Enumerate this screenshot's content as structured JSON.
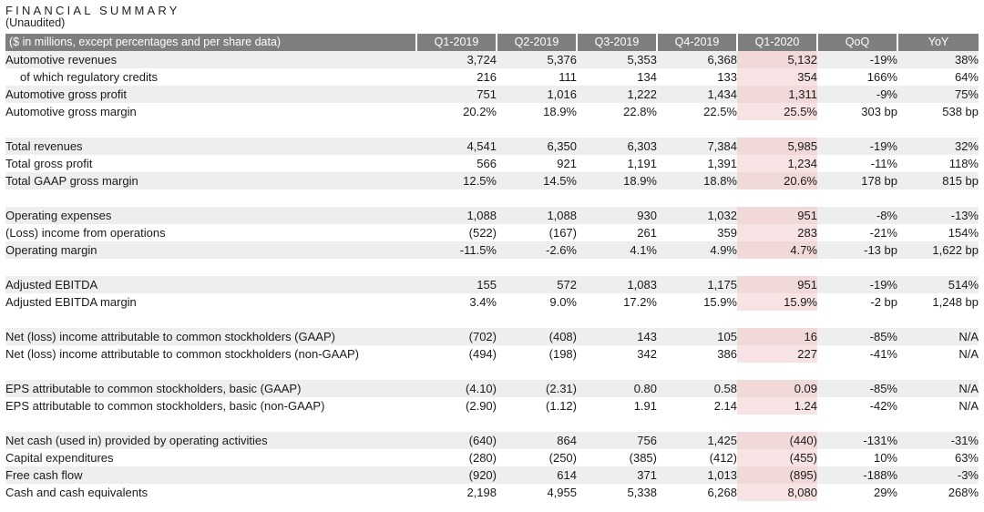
{
  "header": {
    "title": "FINANCIAL SUMMARY",
    "subtitle": "(Unaudited)"
  },
  "table": {
    "label_header": "($ in millions, except percentages and per share data)",
    "columns": [
      "Q1-2019",
      "Q2-2019",
      "Q3-2019",
      "Q4-2019",
      "Q1-2020",
      "QoQ",
      "YoY"
    ],
    "highlight_column": "Q1-2020",
    "highlight_color": "#f1d9d9",
    "header_color": "#7f7f7f",
    "rows": [
      {
        "label": "Automotive revenues",
        "values": [
          "3,724",
          "5,376",
          "5,353",
          "6,368",
          "5,132",
          "-19%",
          "38%"
        ]
      },
      {
        "label": "of which regulatory credits",
        "indent": true,
        "values": [
          "216",
          "111",
          "134",
          "133",
          "354",
          "166%",
          "64%"
        ]
      },
      {
        "label": "Automotive gross profit",
        "values": [
          "751",
          "1,016",
          "1,222",
          "1,434",
          "1,311",
          "-9%",
          "75%"
        ]
      },
      {
        "label": "Automotive gross margin",
        "values": [
          "20.2%",
          "18.9%",
          "22.8%",
          "22.5%",
          "25.5%",
          "303 bp",
          "538 bp"
        ]
      },
      {
        "spacer": true
      },
      {
        "label": "Total revenues",
        "values": [
          "4,541",
          "6,350",
          "6,303",
          "7,384",
          "5,985",
          "-19%",
          "32%"
        ]
      },
      {
        "label": "Total gross profit",
        "values": [
          "566",
          "921",
          "1,191",
          "1,391",
          "1,234",
          "-11%",
          "118%"
        ]
      },
      {
        "label": "Total GAAP gross margin",
        "values": [
          "12.5%",
          "14.5%",
          "18.9%",
          "18.8%",
          "20.6%",
          "178 bp",
          "815 bp"
        ]
      },
      {
        "spacer": true
      },
      {
        "label": "Operating expenses",
        "values": [
          "1,088",
          "1,088",
          "930",
          "1,032",
          "951",
          "-8%",
          "-13%"
        ]
      },
      {
        "label": "(Loss) income from operations",
        "values": [
          "(522)",
          "(167)",
          "261",
          "359",
          "283",
          "-21%",
          "154%"
        ]
      },
      {
        "label": "Operating margin",
        "values": [
          "-11.5%",
          "-2.6%",
          "4.1%",
          "4.9%",
          "4.7%",
          "-13 bp",
          "1,622 bp"
        ]
      },
      {
        "spacer": true
      },
      {
        "label": "Adjusted EBITDA",
        "values": [
          "155",
          "572",
          "1,083",
          "1,175",
          "951",
          "-19%",
          "514%"
        ]
      },
      {
        "label": "Adjusted EBITDA margin",
        "values": [
          "3.4%",
          "9.0%",
          "17.2%",
          "15.9%",
          "15.9%",
          "-2 bp",
          "1,248 bp"
        ]
      },
      {
        "spacer": true
      },
      {
        "label": "Net (loss) income attributable to common stockholders (GAAP)",
        "values": [
          "(702)",
          "(408)",
          "143",
          "105",
          "16",
          "-85%",
          "N/A"
        ]
      },
      {
        "label": "Net (loss) income attributable to common stockholders (non-GAAP)",
        "values": [
          "(494)",
          "(198)",
          "342",
          "386",
          "227",
          "-41%",
          "N/A"
        ]
      },
      {
        "spacer": true
      },
      {
        "label": "EPS attributable to common stockholders, basic (GAAP)",
        "values": [
          "(4.10)",
          "(2.31)",
          "0.80",
          "0.58",
          "0.09",
          "-85%",
          "N/A"
        ]
      },
      {
        "label": "EPS attributable to common stockholders, basic (non-GAAP)",
        "values": [
          "(2.90)",
          "(1.12)",
          "1.91",
          "2.14",
          "1.24",
          "-42%",
          "N/A"
        ]
      },
      {
        "spacer": true
      },
      {
        "label": "Net cash (used in) provided by operating activities",
        "values": [
          "(640)",
          "864",
          "756",
          "1,425",
          "(440)",
          "-131%",
          "-31%"
        ]
      },
      {
        "label": "Capital expenditures",
        "values": [
          "(280)",
          "(250)",
          "(385)",
          "(412)",
          "(455)",
          "10%",
          "63%"
        ]
      },
      {
        "label": "Free cash flow",
        "values": [
          "(920)",
          "614",
          "371",
          "1,013",
          "(895)",
          "-188%",
          "-3%"
        ]
      },
      {
        "label": "Cash and cash equivalents",
        "values": [
          "2,198",
          "4,955",
          "5,338",
          "6,268",
          "8,080",
          "29%",
          "268%"
        ]
      }
    ]
  }
}
